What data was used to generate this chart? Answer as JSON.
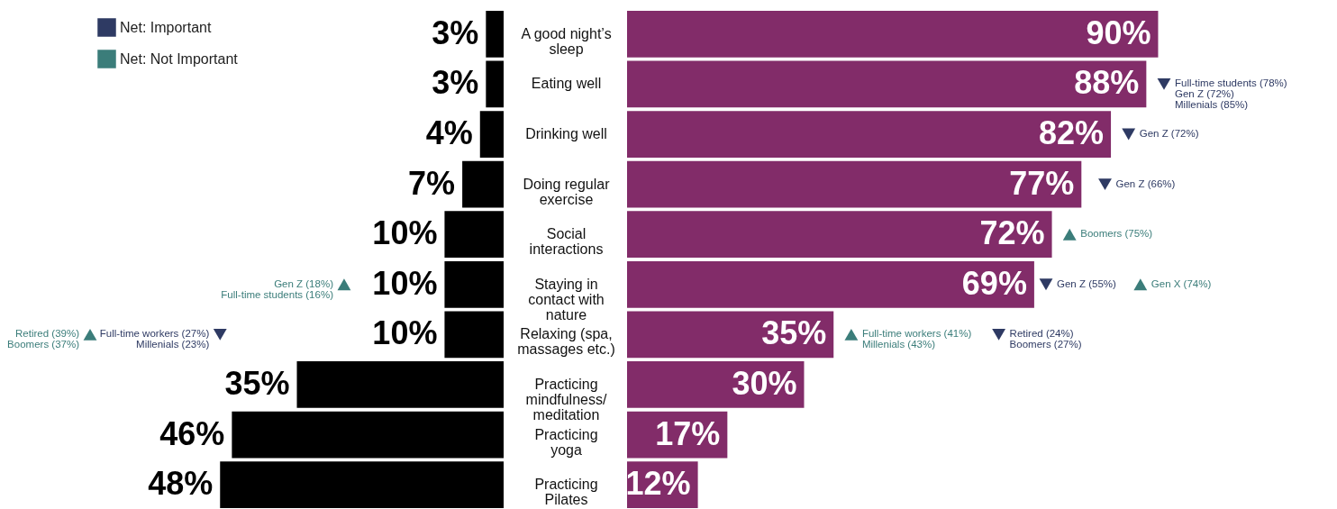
{
  "chart_data": [
    {
      "type": "bar",
      "orientation": "horizontal",
      "categories": [
        "A good night’s sleep",
        "Eating well",
        "Drinking well",
        "Doing regular exercise",
        "Social interactions",
        "Staying in contact with nature",
        "Relaxing (spa, massages etc.)",
        "Practicing mindfulness/ meditation",
        "Practicing yoga",
        "Practicing Pilates"
      ],
      "tick_labels": false,
      "legend": "top left",
      "marker": "triangle",
      "series": [
        {
          "color": "#000000",
          "values": [
            3,
            3,
            4,
            7,
            10,
            10,
            10,
            35,
            46,
            48
          ],
          "value_labels": [
            "3%",
            "3%",
            "4%",
            "7%",
            "10%",
            "10%",
            "10%",
            "35%",
            "46%",
            "48%"
          ]
        },
        {
          "type": "scatter",
          "name": "Net: Important",
          "color": "#2e3a63",
          "values": [
            null,
            null,
            null,
            null,
            null,
            null,
            48,
            null,
            null,
            null
          ]
        },
        {
          "type": "scatter",
          "name": "Net: Not Important",
          "color": "#3b7d7a",
          "values": [
            null,
            null,
            null,
            null,
            null,
            27,
            70,
            null,
            null,
            null
          ]
        }
      ],
      "annotations": [
        {
          "text": "Gen Z (18%)\nFull-time students (16%)",
          "x": 27,
          "y": "Staying in contact with nature"
        },
        {
          "text": "Full-time workers (27%)\nMillenials (23%)",
          "x": 48,
          "y": "Relaxing (spa, massages etc.)"
        },
        {
          "text": "Retired (39%)\nBoomers (37%)",
          "x": 70,
          "y": "Relaxing (spa, massages etc.)"
        }
      ]
    },
    {
      "type": "bar",
      "orientation": "horizontal",
      "categories": [
        "A good night’s sleep",
        "Eating well",
        "Drinking well",
        "Doing regular exercise",
        "Social interactions",
        "Staying in contact with nature",
        "Relaxing (spa, massages etc.)",
        "Practicing mindfulness/ meditation",
        "Practicing yoga",
        "Practicing Pilates"
      ],
      "tick_labels": "y",
      "marker": "triangle",
      "series": [
        {
          "color": "#822c69",
          "values": [
            90,
            88,
            82,
            77,
            72,
            69,
            35,
            30,
            17,
            12
          ],
          "value_labels": [
            "90%",
            "88%",
            "82%",
            "77%",
            "72%",
            "69%",
            "35%",
            "30%",
            "17%",
            "12%"
          ]
        },
        {
          "type": "scatter",
          "color": "#2e3a63",
          "values": [
            null,
            91,
            85,
            81,
            null,
            71,
            63,
            null,
            null,
            null
          ]
        },
        {
          "type": "scatter",
          "color": "#3b7d7a",
          "values": [
            null,
            null,
            null,
            null,
            75,
            87,
            38,
            null,
            null,
            null
          ]
        }
      ],
      "annotations": [
        {
          "text": "Full-time students (78%)\nGen Z (72%)\nMillenials (85%)",
          "x": 91,
          "y": "Eating well"
        },
        {
          "text": "Gen Z (72%)",
          "x": 85,
          "y": "Drinking well"
        },
        {
          "text": "Gen Z (66%)",
          "x": 81,
          "y": "Doing regular exercise"
        },
        {
          "text": "Boomers (75%)",
          "x": 75,
          "y": "Social interactions"
        },
        {
          "text": "Gen Z (55%)",
          "x": 71,
          "y": "Staying in contact with nature"
        },
        {
          "text": "Gen X (74%)",
          "x": 87,
          "y": "Staying in contact with nature"
        },
        {
          "text": "Full-time workers (41%)\nMillenials (43%)",
          "x": 38,
          "y": "Relaxing (spa, massages etc.)"
        },
        {
          "text": "Retired (24%)\nBoomers (27%)",
          "x": 63,
          "y": "Relaxing (spa, massages etc.)"
        }
      ]
    }
  ]
}
